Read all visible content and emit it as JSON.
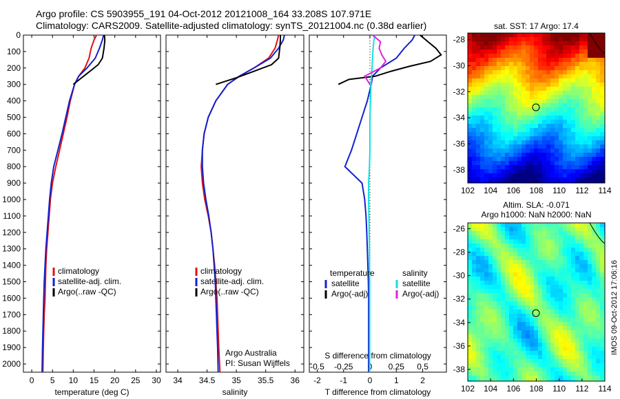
{
  "title_line1": "Argo profile: CS 5903955_191 04-Oct-2012 20121008_164 33.208S 107.971E",
  "title_line2": "Climatology: CARS2009. Satellite-adjusted climatology: synTS_20121004.nc (0.38d earlier)",
  "colors": {
    "climatology": "#e01010",
    "satellite_adj": "#1020d0",
    "argo": "#000000",
    "salinity_sat": "#10e0e0",
    "salinity_argo": "#e020e0"
  },
  "chart_data": [
    {
      "type": "line",
      "id": "temperature",
      "xlabel": "temperature (deg C)",
      "xlim": [
        -2,
        31
      ],
      "xticks": [
        0,
        5,
        10,
        15,
        20,
        25,
        30
      ],
      "ylim": [
        2050,
        0
      ],
      "yticks": [
        0,
        100,
        200,
        300,
        400,
        500,
        600,
        700,
        800,
        900,
        1000,
        1100,
        1200,
        1300,
        1400,
        1500,
        1600,
        1700,
        1800,
        1900,
        2000
      ],
      "legend": [
        "climatology",
        "satellite-adj. clim.",
        "Argo(..raw -QC)"
      ],
      "series": [
        {
          "name": "climatology",
          "color_key": "climatology",
          "x": [
            15.6,
            15.0,
            14.3,
            13.8,
            12.8,
            11.3,
            10.3,
            9.3,
            8.5,
            7.6,
            6.7,
            5.8,
            5.0,
            4.5,
            4.2,
            3.9,
            3.6,
            3.4,
            3.3,
            3.2,
            3.0,
            2.9,
            2.8,
            2.7
          ],
          "y": [
            0,
            30,
            80,
            140,
            200,
            250,
            300,
            400,
            500,
            600,
            700,
            800,
            900,
            1000,
            1100,
            1200,
            1300,
            1400,
            1500,
            1600,
            1700,
            1800,
            1900,
            2050
          ]
        },
        {
          "name": "satellite-adj. clim.",
          "color_key": "satellite_adj",
          "x": [
            17.3,
            17.0,
            16.3,
            15.3,
            13.3,
            11.3,
            10.3,
            9.1,
            8.2,
            7.3,
            6.3,
            5.3,
            4.7,
            4.3,
            4.0,
            3.7,
            3.4,
            3.2,
            3.0,
            2.9,
            2.8,
            2.7,
            2.6,
            2.5
          ],
          "y": [
            0,
            30,
            80,
            140,
            200,
            250,
            300,
            400,
            500,
            600,
            700,
            800,
            900,
            1000,
            1100,
            1200,
            1300,
            1400,
            1500,
            1600,
            1700,
            1800,
            1900,
            2050
          ]
        },
        {
          "name": "Argo(..raw -QC)",
          "color_key": "argo",
          "x": [
            17.5,
            17.6,
            17.4,
            17.0,
            16.0,
            14.0,
            12.0,
            10.0
          ],
          "y": [
            0,
            30,
            80,
            140,
            180,
            220,
            260,
            300
          ]
        }
      ]
    },
    {
      "type": "line",
      "id": "salinity",
      "xlabel": "salinity",
      "xlim": [
        33.8,
        36.15
      ],
      "xticks": [
        34,
        34.5,
        35,
        35.5,
        36
      ],
      "ylim": [
        2050,
        0
      ],
      "legend": [
        "climatology",
        "satellite-adj. clim.",
        "Argo(..raw -QC)"
      ],
      "annotation": [
        "Argo Australia",
        "PI: Susan Wijffels"
      ],
      "series": [
        {
          "name": "climatology",
          "color_key": "climatology",
          "x": [
            35.72,
            35.7,
            35.66,
            35.55,
            35.3,
            35.05,
            34.85,
            34.65,
            34.52,
            34.45,
            34.42,
            34.4,
            34.42,
            34.46,
            34.52,
            34.57,
            34.6,
            34.63,
            34.65,
            34.67,
            34.68,
            34.69,
            34.7,
            34.72
          ],
          "y": [
            0,
            30,
            80,
            140,
            200,
            250,
            300,
            400,
            500,
            600,
            700,
            800,
            900,
            1000,
            1100,
            1200,
            1300,
            1400,
            1500,
            1600,
            1700,
            1800,
            1900,
            2050
          ]
        },
        {
          "name": "satellite-adj. clim.",
          "color_key": "satellite_adj",
          "x": [
            35.82,
            35.8,
            35.72,
            35.58,
            35.3,
            35.05,
            34.85,
            34.65,
            34.52,
            34.45,
            34.42,
            34.42,
            34.44,
            34.48,
            34.53,
            34.57,
            34.6,
            34.62,
            34.64,
            34.65,
            34.66,
            34.67,
            34.68,
            34.69
          ],
          "y": [
            0,
            30,
            80,
            140,
            200,
            250,
            300,
            400,
            500,
            600,
            700,
            800,
            900,
            1000,
            1100,
            1200,
            1300,
            1400,
            1500,
            1600,
            1700,
            1800,
            1900,
            2050
          ]
        },
        {
          "name": "Argo(..raw -QC)",
          "color_key": "argo",
          "x": [
            35.75,
            35.75,
            35.74,
            35.72,
            35.6,
            35.3,
            35.0,
            34.65
          ],
          "y": [
            0,
            30,
            80,
            140,
            180,
            220,
            260,
            300
          ]
        }
      ]
    },
    {
      "type": "line",
      "id": "difference",
      "xlabel": "T difference from climatology",
      "xlabel_top": "S difference from climatology",
      "xlim": [
        -2.3,
        2.9
      ],
      "xticks": [
        -2,
        -1,
        0,
        1,
        2
      ],
      "xticks_top": [
        -0.5,
        -0.25,
        0,
        0.25,
        0.5
      ],
      "xticklabels_top": [
        "-0.5",
        "-0.25",
        "0",
        "0.25",
        "0.5"
      ],
      "ylim": [
        2050,
        0
      ],
      "legend_left_title": "temperature",
      "legend_right_title": "salinity",
      "legend": [
        "satellite",
        "Argo(-adj)",
        "satellite",
        "Argo(-adj)"
      ],
      "series": [
        {
          "name": "satellite",
          "color_key": "satellite_adj",
          "x": [
            1.7,
            1.6,
            1.3,
            1.0,
            0.4,
            0.1,
            0.05,
            -0.1,
            -0.3,
            -0.5,
            -0.7,
            -0.95,
            -0.3,
            -0.2,
            -0.15,
            -0.12,
            -0.1,
            -0.08,
            -0.06,
            -0.05,
            -0.05,
            -0.05,
            -0.05,
            -0.05
          ],
          "y": [
            0,
            30,
            80,
            140,
            200,
            250,
            300,
            400,
            500,
            600,
            700,
            800,
            900,
            1000,
            1100,
            1200,
            1300,
            1400,
            1500,
            1600,
            1700,
            1800,
            1900,
            2050
          ]
        },
        {
          "name": "Argo(-adj)",
          "color_key": "argo",
          "x": [
            1.9,
            2.2,
            2.5,
            2.7,
            2.3,
            1.5,
            0.8,
            0.2,
            -0.8,
            -1.2
          ],
          "y": [
            0,
            40,
            80,
            120,
            160,
            190,
            220,
            250,
            270,
            300
          ]
        },
        {
          "name": "satellite",
          "color_key": "salinity_sat",
          "x": [
            0.2,
            0.15,
            0.12,
            0.1,
            0.08,
            0.06,
            0.04,
            0.02,
            0.0,
            0.0,
            0.0,
            -0.02,
            -0.05,
            -0.05,
            -0.04,
            -0.03,
            -0.02,
            -0.02,
            -0.01,
            -0.01,
            -0.01,
            -0.01,
            -0.01,
            -0.01
          ],
          "y": [
            0,
            30,
            80,
            140,
            200,
            250,
            300,
            400,
            500,
            600,
            700,
            800,
            900,
            1000,
            1100,
            1200,
            1300,
            1400,
            1500,
            1600,
            1700,
            1800,
            1900,
            2050
          ]
        },
        {
          "name": "Argo(-adj)",
          "color_key": "salinity_argo",
          "x": [
            0.1,
            0.4,
            0.35,
            0.45,
            0.6,
            0.4,
            -0.2,
            0.0
          ],
          "y": [
            0,
            40,
            80,
            120,
            160,
            200,
            250,
            300
          ]
        }
      ]
    },
    {
      "type": "heatmap",
      "id": "sst_map",
      "title": "sat. SST: 17 Argo: 17.4",
      "xlim": [
        102,
        114
      ],
      "xticks": [
        102,
        104,
        106,
        108,
        110,
        112,
        114
      ],
      "ylim": [
        -39,
        -27.5
      ],
      "yticks": [
        -28,
        -30,
        -32,
        -34,
        -36,
        -38
      ],
      "marker": {
        "x": 107.97,
        "y": -33.2
      },
      "colormap": "jet"
    },
    {
      "type": "heatmap",
      "id": "sla_map",
      "title_line1": "Altim. SLA: -0.071",
      "title_line2": "Argo h1000: NaN h2000: NaN",
      "xlim": [
        102,
        114
      ],
      "xticks": [
        102,
        104,
        106,
        108,
        110,
        112,
        114
      ],
      "ylim": [
        -39,
        -25.5
      ],
      "yticks": [
        -26,
        -28,
        -30,
        -32,
        -34,
        -36,
        -38
      ],
      "marker": {
        "x": 107.97,
        "y": -33.2
      },
      "colormap": "jet"
    }
  ],
  "footer_stamp": "IMOS 09-Oct-2012 17:06:16"
}
